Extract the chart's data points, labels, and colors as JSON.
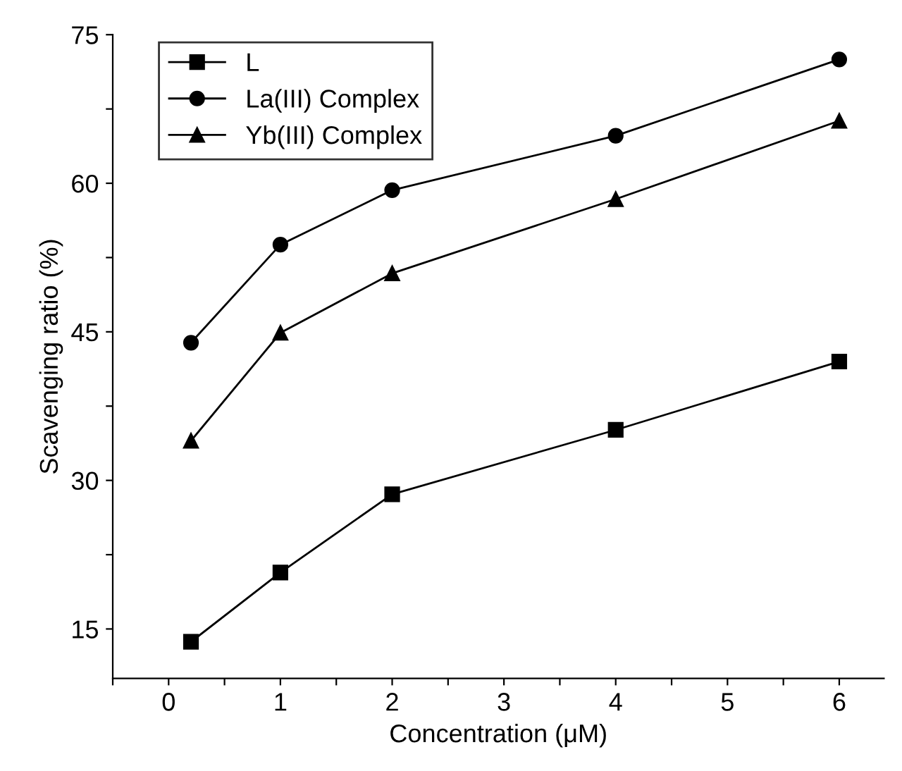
{
  "chart_data": {
    "type": "line",
    "xlabel": "Concentration (μM)",
    "ylabel": "Scavenging ratio (%)",
    "x": [
      0.2,
      1,
      2,
      4,
      6
    ],
    "series": [
      {
        "name": "L",
        "color": "#000000",
        "marker": "square",
        "values": [
          13.7,
          20.7,
          28.6,
          35.1,
          42.0
        ]
      },
      {
        "name": "La(III) Complex",
        "color": "#000000",
        "marker": "circle",
        "values": [
          43.9,
          53.8,
          59.3,
          64.8,
          72.5
        ]
      },
      {
        "name": "Yb(III) Complex",
        "color": "#000000",
        "marker": "triangle",
        "values": [
          34.0,
          44.9,
          50.9,
          58.4,
          66.3
        ]
      }
    ],
    "xlim": [
      -0.5,
      6.4
    ],
    "ylim": [
      10,
      75
    ],
    "xticks": [
      {
        "value": -0.5,
        "label": null
      },
      0,
      {
        "value": 0.5,
        "label": null
      },
      1,
      {
        "value": 1.5,
        "label": null
      },
      2,
      {
        "value": 2.5,
        "label": null
      },
      3,
      {
        "value": 3.5,
        "label": null
      },
      4,
      {
        "value": 4.5,
        "label": null
      },
      5,
      {
        "value": 5.5,
        "label": null
      },
      6
    ],
    "yticks": [
      15,
      {
        "value": 22.5,
        "label": null
      },
      30,
      {
        "value": 37.5,
        "label": null
      },
      45,
      {
        "value": 52.5,
        "label": null
      },
      60,
      {
        "value": 67.5,
        "label": null
      },
      75
    ],
    "legend": "top left",
    "grid": false,
    "line_style": "solid"
  }
}
